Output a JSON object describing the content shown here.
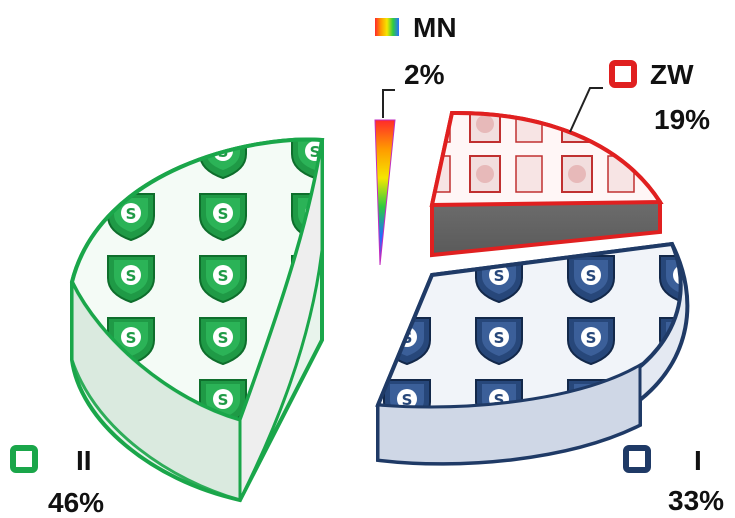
{
  "chart_data": {
    "type": "pie",
    "style": "3d-exploded",
    "title": "",
    "legend_placement": "labels-beside-slices",
    "slices": [
      {
        "name": "II",
        "value": 46,
        "value_label": "46%",
        "color": "#1aa64a"
      },
      {
        "name": "I",
        "value": 33,
        "value_label": "33%",
        "color": "#1f3a66"
      },
      {
        "name": "ZW",
        "value": 19,
        "value_label": "19%",
        "color": "#e02020"
      },
      {
        "name": "MN",
        "value": 2,
        "value_label": "2%",
        "color": "rainbow"
      }
    ]
  }
}
